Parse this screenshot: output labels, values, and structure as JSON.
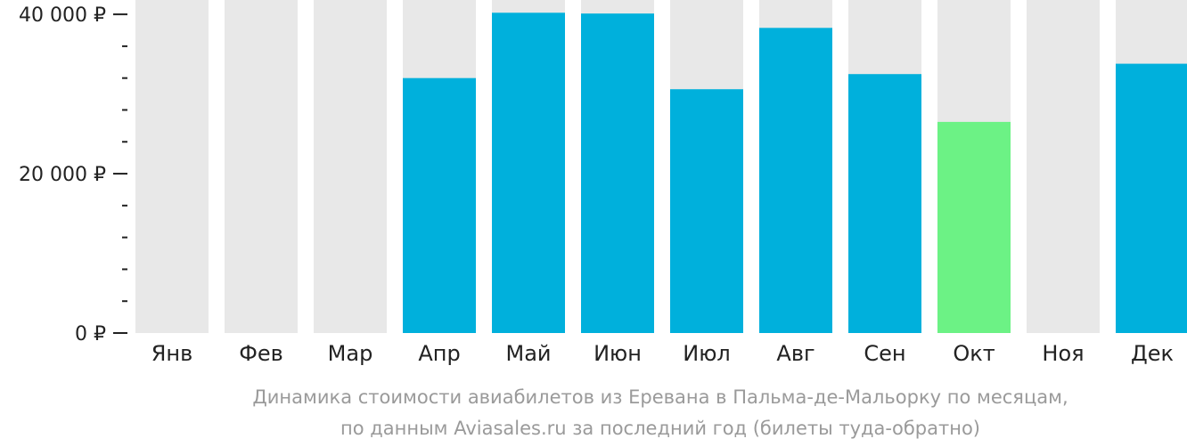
{
  "chart_data": {
    "type": "bar",
    "categories": [
      "Янв",
      "Фев",
      "Мар",
      "Апр",
      "Май",
      "Июн",
      "Июл",
      "Авг",
      "Сен",
      "Окт",
      "Ноя",
      "Дек"
    ],
    "values": [
      null,
      null,
      null,
      32000,
      40200,
      40100,
      30600,
      38300,
      32500,
      26500,
      null,
      33800
    ],
    "ylim": [
      0,
      41800
    ],
    "y_ticks": [
      {
        "value": 0,
        "label": "0 ₽"
      },
      {
        "value": 20000,
        "label": "20 000 ₽"
      },
      {
        "value": 40000,
        "label": "40 000 ₽"
      }
    ],
    "minor_tick_step": 4000,
    "highlight_category": "Окт",
    "caption_lines": [
      "Динамика стоимости авиабилетов из Еревана в Пальма-де-Мальорку по месяцам,",
      "по данным Aviasales.ru за последний год (билеты туда-обратно)"
    ],
    "colors": {
      "bar": "#00b0dc",
      "highlight": "#6cf285",
      "background_bar": "#e8e8e8",
      "axis": "#222222",
      "caption": "#9a9a9a"
    },
    "grid": false,
    "legend": "none"
  }
}
